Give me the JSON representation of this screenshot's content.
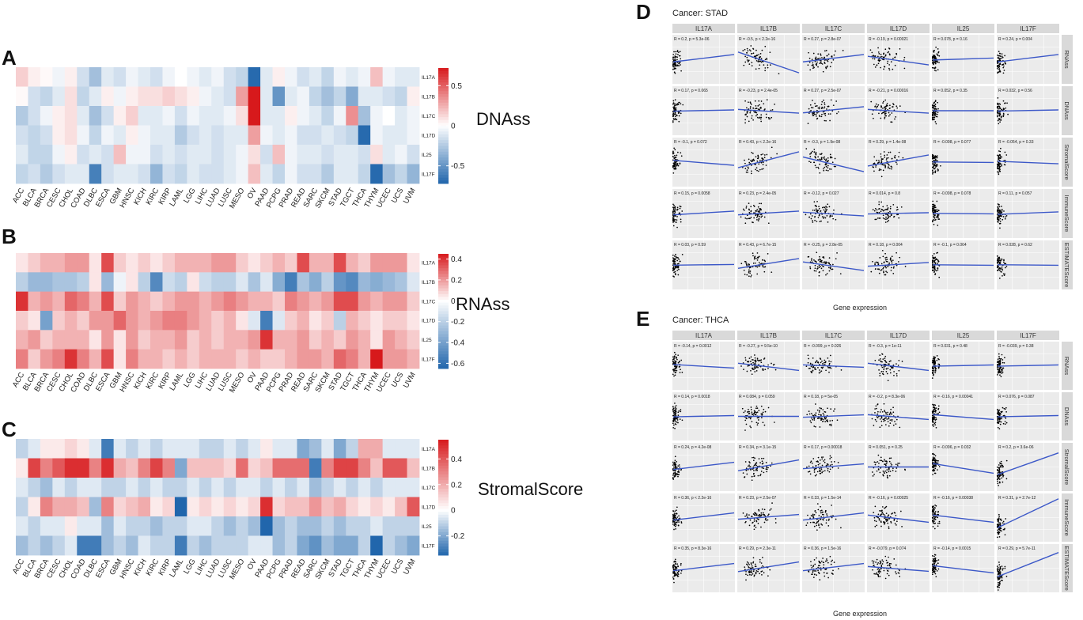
{
  "panel_letters": {
    "A": "A",
    "B": "B",
    "C": "C",
    "D": "D",
    "E": "E"
  },
  "colors": {
    "high": "#d7191c",
    "mid": "#ffffff",
    "low": "#2166ac",
    "strip": "#d9d9d9",
    "facet_bg": "#ebebeb",
    "line": "#3c58c8",
    "point": "#000000"
  },
  "cancers": [
    "ACC",
    "BLCA",
    "BRCA",
    "CESC",
    "CHOL",
    "COAD",
    "DLBC",
    "ESCA",
    "GBM",
    "HNSC",
    "KICH",
    "KIRC",
    "KIRP",
    "LAML",
    "LGG",
    "LIHC",
    "LUAD",
    "LUSC",
    "MESO",
    "OV",
    "PAAD",
    "PCPG",
    "PRAD",
    "READ",
    "SARC",
    "SKCM",
    "STAD",
    "TGCT",
    "THCA",
    "THYM",
    "UCEC",
    "UCS",
    "UVM"
  ],
  "genes": [
    "IL17A",
    "IL17B",
    "IL17C",
    "IL17D",
    "IL25",
    "IL17F"
  ],
  "chart_data": [
    {
      "type": "heatmap",
      "panel": "A",
      "title": "DNAss",
      "rows": [
        "IL17A",
        "IL17B",
        "IL17C",
        "IL17D",
        "IL25",
        "IL17F"
      ],
      "legend_ticks": [
        "0.5",
        "0",
        "-0.5"
      ],
      "legend_values": [
        0.5,
        0,
        -0.5
      ],
      "range": [
        -0.72,
        0.72
      ],
      "values": [
        [
          0.15,
          0.05,
          0.02,
          -0.05,
          0.05,
          -0.15,
          -0.3,
          -0.1,
          -0.15,
          -0.05,
          -0.1,
          -0.15,
          -0.05,
          0,
          -0.05,
          -0.1,
          -0.05,
          -0.15,
          -0.2,
          -0.7,
          -0.1,
          0.05,
          -0.05,
          -0.15,
          -0.1,
          -0.2,
          -0.05,
          -0.1,
          -0.05,
          0.2,
          -0.05,
          -0.1,
          -0.1
        ],
        [
          0.02,
          -0.15,
          -0.2,
          -0.1,
          0.1,
          -0.2,
          -0.1,
          0.05,
          -0.05,
          0.05,
          0.1,
          0.1,
          0.15,
          0.1,
          0.05,
          -0.05,
          -0.1,
          -0.15,
          0.3,
          0.72,
          -0.1,
          -0.5,
          -0.1,
          -0.05,
          -0.2,
          -0.3,
          -0.2,
          -0.4,
          -0.1,
          -0.1,
          -0.15,
          -0.2,
          0.05
        ],
        [
          -0.25,
          -0.15,
          -0.05,
          0.05,
          0.1,
          -0.1,
          -0.3,
          -0.15,
          0.05,
          0.15,
          -0.1,
          -0.1,
          -0.05,
          -0.15,
          -0.05,
          -0.1,
          -0.1,
          -0.05,
          0.1,
          0.72,
          -0.1,
          -0.1,
          0.05,
          -0.05,
          -0.1,
          -0.2,
          -0.05,
          0.35,
          -0.3,
          -0.05,
          0,
          -0.1,
          -0.05
        ],
        [
          -0.15,
          -0.2,
          -0.15,
          0.05,
          0.1,
          -0.05,
          -0.2,
          -0.05,
          -0.1,
          0.05,
          -0.05,
          -0.1,
          -0.1,
          -0.25,
          -0.15,
          -0.1,
          -0.15,
          -0.1,
          -0.1,
          0.3,
          -0.05,
          -0.1,
          -0.05,
          -0.15,
          -0.15,
          -0.1,
          -0.15,
          -0.2,
          -0.7,
          -0.05,
          -0.1,
          -0.1,
          -0.05
        ],
        [
          -0.1,
          -0.2,
          -0.2,
          -0.05,
          0.05,
          -0.15,
          -0.1,
          -0.15,
          0.2,
          -0.05,
          -0.05,
          -0.15,
          -0.1,
          -0.15,
          -0.1,
          -0.1,
          -0.15,
          -0.1,
          -0.05,
          0.1,
          -0.15,
          0.2,
          -0.05,
          -0.1,
          -0.1,
          -0.15,
          -0.1,
          -0.1,
          -0.15,
          0.1,
          -0.1,
          -0.05,
          -0.15
        ],
        [
          -0.2,
          -0.15,
          -0.25,
          -0.15,
          -0.1,
          -0.1,
          -0.6,
          -0.15,
          -0.1,
          -0.1,
          -0.15,
          -0.35,
          -0.15,
          -0.2,
          -0.1,
          -0.15,
          -0.15,
          -0.1,
          -0.05,
          0.2,
          -0.1,
          -0.2,
          -0.05,
          -0.15,
          -0.15,
          -0.25,
          -0.1,
          -0.1,
          -0.2,
          -0.7,
          -0.3,
          -0.2,
          -0.35
        ]
      ]
    },
    {
      "type": "heatmap",
      "panel": "B",
      "title": "RNAss",
      "rows": [
        "IL17A",
        "IL17B",
        "IL17C",
        "IL17D",
        "IL25",
        "IL17F"
      ],
      "legend_ticks": [
        "0.4",
        "0.2",
        "0",
        "-0.2",
        "-0.4",
        "-0.6"
      ],
      "legend_values": [
        0.4,
        0.2,
        0,
        -0.2,
        -0.4,
        -0.6
      ],
      "range": [
        -0.65,
        0.45
      ],
      "values": [
        [
          0.05,
          0.1,
          0.15,
          0.15,
          0.2,
          0.2,
          0.05,
          0.35,
          0.1,
          0.05,
          0.1,
          0.05,
          0.1,
          0.15,
          0.15,
          0.15,
          0.2,
          0.2,
          0.1,
          0.05,
          0.1,
          0.15,
          0.1,
          0.35,
          0.15,
          0.15,
          0.35,
          0.15,
          0.1,
          0.2,
          0.2,
          0.2,
          0.05
        ],
        [
          -0.2,
          -0.3,
          -0.3,
          -0.25,
          -0.25,
          -0.2,
          0.05,
          -0.3,
          -0.05,
          0.05,
          -0.2,
          -0.5,
          -0.15,
          -0.2,
          0.05,
          -0.15,
          -0.2,
          -0.2,
          -0.1,
          -0.25,
          -0.1,
          -0.35,
          -0.55,
          -0.25,
          -0.35,
          -0.2,
          -0.45,
          -0.5,
          -0.3,
          -0.35,
          -0.3,
          -0.25,
          -0.1
        ],
        [
          0.4,
          0.15,
          0.2,
          0.15,
          0.3,
          0.25,
          0.15,
          0.35,
          0.1,
          0.2,
          0.15,
          0.1,
          0.15,
          0.2,
          0.2,
          0.15,
          0.2,
          0.25,
          0.2,
          0.15,
          0.15,
          0.1,
          0.25,
          0.2,
          0.15,
          0.2,
          0.35,
          0.35,
          0.2,
          0.15,
          0.2,
          0.2,
          0.1
        ],
        [
          0.1,
          0.05,
          -0.4,
          0.1,
          0.15,
          0.1,
          0.2,
          0.2,
          0.3,
          0.2,
          0.15,
          0.2,
          0.25,
          0.25,
          0.2,
          0.15,
          0.1,
          0.15,
          0.05,
          -0.1,
          -0.55,
          -0.1,
          0.1,
          0.15,
          0.05,
          0.1,
          -0.2,
          0.15,
          0.1,
          0.05,
          0.1,
          0.1,
          0.05
        ],
        [
          0.15,
          0.2,
          0.1,
          0.15,
          0.15,
          0.15,
          0.05,
          0.2,
          0.05,
          0.2,
          0.1,
          0.15,
          0.15,
          0.2,
          0.1,
          0.15,
          0.1,
          0.15,
          0.15,
          0.2,
          0.4,
          0.15,
          0.15,
          0.2,
          0.1,
          0.15,
          0.1,
          0.2,
          0.15,
          0.05,
          0.2,
          0.15,
          0.1
        ],
        [
          0.25,
          0.1,
          0.2,
          0.25,
          0.4,
          0.25,
          0.15,
          0.35,
          0.05,
          0.25,
          0.15,
          0.15,
          0.1,
          0.15,
          0.1,
          0.15,
          0.15,
          0.15,
          0.1,
          0.15,
          0.1,
          0.1,
          0.15,
          0.2,
          0.2,
          0.15,
          0.3,
          0.25,
          0.15,
          0.45,
          0.2,
          0.2,
          0.15
        ]
      ]
    },
    {
      "type": "heatmap",
      "panel": "C",
      "title": "StromalScore",
      "rows": [
        "IL17A",
        "IL17B",
        "IL17C",
        "IL17D",
        "IL25",
        "IL17F"
      ],
      "legend_ticks": [
        "0.4",
        "0.2",
        "0",
        "-0.2"
      ],
      "legend_values": [
        0.4,
        0.2,
        0,
        -0.2
      ],
      "range": [
        -0.35,
        0.55
      ],
      "values": [
        [
          -0.1,
          -0.05,
          0.05,
          0.05,
          0.1,
          0.05,
          -0.05,
          -0.3,
          -0.05,
          -0.1,
          -0.05,
          -0.1,
          -0.05,
          -0.05,
          -0.05,
          -0.1,
          -0.1,
          -0.05,
          -0.1,
          -0.05,
          0.05,
          -0.05,
          -0.05,
          -0.2,
          -0.15,
          -0.05,
          -0.2,
          -0.1,
          0.2,
          0.2,
          -0.05,
          -0.05,
          -0.05
        ],
        [
          0.05,
          0.45,
          0.3,
          0.4,
          0.5,
          0.5,
          0.3,
          0.5,
          0.2,
          0.15,
          0.3,
          0.45,
          0.3,
          -0.2,
          0.15,
          0.15,
          0.15,
          0.1,
          0.35,
          0.1,
          0.15,
          0.35,
          0.35,
          0.35,
          -0.3,
          0.3,
          0.45,
          0.45,
          0.3,
          0.15,
          0.4,
          0.4,
          0.15
        ],
        [
          -0.05,
          -0.1,
          -0.15,
          -0.05,
          -0.1,
          -0.05,
          -0.05,
          -0.1,
          -0.1,
          -0.05,
          -0.1,
          -0.05,
          -0.1,
          -0.1,
          -0.05,
          -0.1,
          -0.05,
          -0.1,
          -0.05,
          -0.05,
          -0.1,
          -0.05,
          -0.1,
          -0.05,
          -0.15,
          -0.1,
          -0.05,
          -0.1,
          -0.05,
          -0.1,
          -0.05,
          -0.05,
          -0.05
        ],
        [
          -0.1,
          0.05,
          0.3,
          0.2,
          0.2,
          0.15,
          -0.15,
          0.3,
          0.1,
          0.15,
          0.2,
          0.05,
          0.1,
          -0.35,
          0.05,
          0.1,
          0.05,
          0.1,
          0.05,
          0.1,
          0.5,
          0.1,
          0.15,
          0.15,
          0.25,
          0.15,
          0.2,
          0.1,
          0.05,
          0.1,
          0.05,
          0.15,
          0.4
        ],
        [
          -0.05,
          -0.1,
          -0.05,
          -0.05,
          0.05,
          -0.05,
          -0.05,
          -0.15,
          -0.05,
          -0.1,
          -0.1,
          -0.15,
          -0.1,
          -0.1,
          -0.05,
          -0.05,
          -0.1,
          -0.15,
          -0.1,
          -0.15,
          -0.35,
          -0.15,
          -0.1,
          -0.15,
          -0.15,
          -0.1,
          -0.15,
          -0.1,
          -0.1,
          -0.05,
          -0.1,
          -0.1,
          -0.1
        ],
        [
          -0.15,
          -0.1,
          -0.15,
          -0.1,
          -0.05,
          -0.3,
          -0.3,
          -0.15,
          -0.1,
          -0.15,
          -0.05,
          -0.1,
          -0.1,
          -0.3,
          -0.1,
          -0.15,
          -0.1,
          -0.1,
          -0.1,
          -0.05,
          -0.05,
          -0.15,
          -0.1,
          -0.2,
          -0.25,
          -0.15,
          -0.2,
          -0.2,
          -0.1,
          -0.35,
          -0.1,
          -0.15,
          -0.2
        ]
      ]
    },
    {
      "type": "scatter",
      "panel": "D",
      "title": "Cancer: STAD",
      "xlabel": "Gene expression",
      "columns": [
        "IL17A",
        "IL17B",
        "IL17C",
        "IL17D",
        "IL25",
        "IL17F"
      ],
      "rows": [
        "RNAss",
        "DNAss",
        "StromalScore",
        "ImmuneScore",
        "ESTIMATEScore"
      ],
      "slopes": [
        [
          0.3,
          -0.85,
          0.3,
          -0.35,
          0.08,
          0.3
        ],
        [
          0.05,
          -0.15,
          0.25,
          -0.15,
          0,
          0.05
        ],
        [
          -0.2,
          0.65,
          -0.6,
          0.45,
          -0.02,
          -0.1
        ],
        [
          0.15,
          0.15,
          -0.15,
          0.05,
          -0.02,
          0.1
        ],
        [
          0.03,
          0.4,
          -0.35,
          0.15,
          -0.02,
          -0.02
        ]
      ],
      "stats": [
        [
          "R = 0.2, p = 5.3e-06",
          "R = -0.5, p < 2.2e-16",
          "R = 0.27, p = 2.8e-07",
          "R = -0.19, p = 0.00021",
          "R = 0.078, p = 0.16",
          "R = 0.24, p = 0.004"
        ],
        [
          "R = 0.17, p = 0.065",
          "R = -0.23, p = 2.4e-05",
          "R = 0.27, p = 2.5e-07",
          "R = -0.21, p = 0.00016",
          "R = 0.052, p = 0.35",
          "R = 0.032, p = 0.56"
        ],
        [
          "R = -0.1, p = 0.072",
          "R = 0.43, p < 2.2e-16",
          "R = -0.3, p = 1.9e-08",
          "R = 0.29, p = 1.4e-08",
          "R = -0.098, p = 0.077",
          "R = -0.054, p = 0.33"
        ],
        [
          "R = 0.15, p = 0.0058",
          "R = 0.23, p = 2.4e-05",
          "R = -0.12, p = 0.027",
          "R = 0.014, p = 0.8",
          "R = -0.098, p = 0.078",
          "R = 0.11, p = 0.057"
        ],
        [
          "R = 0.03, p = 0.59",
          "R = 0.43, p = 6.7e-15",
          "R = -0.25, p = 2.8e-05",
          "R = 0.18, p = 0.004",
          "R = -0.1, p = 0.064",
          "R = 0.028, p = 0.62"
        ]
      ]
    },
    {
      "type": "scatter",
      "panel": "E",
      "title": "Cancer: THCA",
      "xlabel": "Gene expression",
      "columns": [
        "IL17A",
        "IL17B",
        "IL17C",
        "IL17D",
        "IL25",
        "IL17F"
      ],
      "rows": [
        "RNAss",
        "DNAss",
        "StromalScore",
        "ImmuneScore",
        "ESTIMATEScore"
      ],
      "slopes": [
        [
          -0.15,
          -0.3,
          -0.1,
          -0.3,
          0.05,
          0.05
        ],
        [
          0.05,
          0,
          0.1,
          -0.2,
          -0.2,
          0.05
        ],
        [
          0.3,
          0.45,
          0.2,
          0,
          -0.4,
          0.9
        ],
        [
          0.3,
          0.2,
          0.3,
          -0.3,
          -0.3,
          1.2
        ],
        [
          0.3,
          0.4,
          0.3,
          -0.2,
          -0.3,
          1.0
        ]
      ],
      "stats": [
        [
          "R = -0.14, p = 0.0012",
          "R = -0.27, p = 9.5e-10",
          "R = -0.099, p = 0.026",
          "R = -0.3, p = 1e-11",
          "R = 0.031, p = 0.48",
          "R = -0.039, p = 0.38"
        ],
        [
          "R = 0.14, p = 0.0018",
          "R = 0.084, p = 0.059",
          "R = 0.18, p = 5e-05",
          "R = -0.2, p = 8.3e-06",
          "R = -0.16, p = 0.00041",
          "R = 0.076, p = 0.087"
        ],
        [
          "R = 0.24, p = 4.2e-08",
          "R = 0.34, p = 3.1e-15",
          "R = 0.17, p = 0.00018",
          "R = 0.051, p = 0.25",
          "R = -0.096, p = 0.032",
          "R = 0.2, p = 3.6e-06"
        ],
        [
          "R = 0.36, p < 2.2e-16",
          "R = 0.23, p = 2.5e-07",
          "R = 0.33, p = 1.5e-14",
          "R = -0.16, p = 0.00025",
          "R = -0.16, p = 0.00038",
          "R = 0.31, p = 2.7e-12"
        ],
        [
          "R = 0.35, p = 8.3e-16",
          "R = 0.29, p = 2.3e-11",
          "R = 0.36, p = 1.5e-16",
          "R = -0.079, p = 0.074",
          "R = -0.14, p = 0.0015",
          "R = 0.29, p = 5.7e-11"
        ]
      ]
    }
  ]
}
